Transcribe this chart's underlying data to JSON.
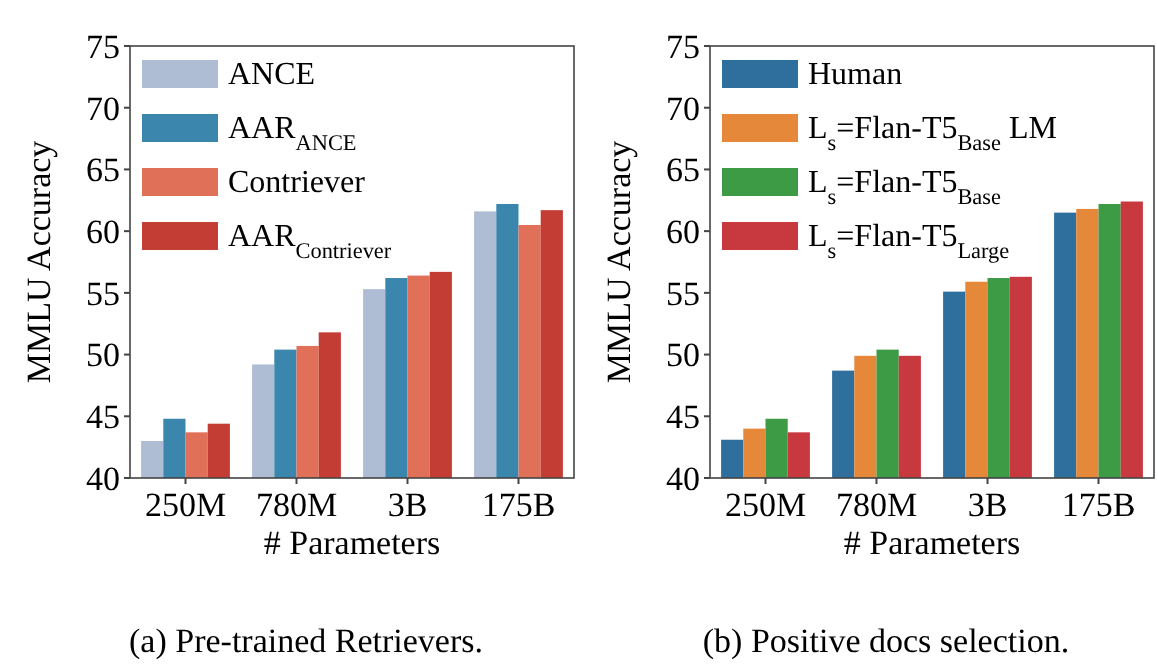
{
  "chart_data": [
    {
      "type": "bar",
      "xlabel": "# Parameters",
      "ylabel": "MMLU Accuracy",
      "categories": [
        "250M",
        "780M",
        "3B",
        "175B"
      ],
      "series": [
        {
          "name": "ANCE",
          "color": "#aebcd4",
          "values": [
            43.0,
            49.2,
            55.3,
            61.6
          ]
        },
        {
          "name": "AAR$_{ANCE}$",
          "color": "#3a86ad",
          "values": [
            44.8,
            50.4,
            56.2,
            62.2
          ]
        },
        {
          "name": "Contriever",
          "color": "#e07058",
          "values": [
            43.7,
            50.7,
            56.4,
            60.5
          ]
        },
        {
          "name": "AAR$_{Contriever}$",
          "color": "#c43d35",
          "values": [
            44.4,
            51.8,
            56.7,
            61.7
          ]
        }
      ],
      "ylim": [
        40,
        75
      ],
      "yticks": [
        40,
        45,
        50,
        55,
        60,
        65,
        70,
        75
      ],
      "legend": "top left",
      "annotations": [
        "(a) Pre-trained Retrievers."
      ]
    },
    {
      "type": "bar",
      "xlabel": "# Parameters",
      "ylabel": "MMLU Accuracy",
      "categories": [
        "250M",
        "780M",
        "3B",
        "175B"
      ],
      "series": [
        {
          "name": "Human",
          "color": "#2e6f9e",
          "values": [
            43.1,
            48.7,
            55.1,
            61.5
          ]
        },
        {
          "name": "L$_{s}$=Flan-T5$_{Base}$ LM",
          "color": "#e6883a",
          "values": [
            44.0,
            49.9,
            55.9,
            61.8
          ]
        },
        {
          "name": "L$_{s}$=Flan-T5$_{Base}$",
          "color": "#3d9a45",
          "values": [
            44.8,
            50.4,
            56.2,
            62.2
          ]
        },
        {
          "name": "L$_{s}$=Flan-T5$_{Large}$",
          "color": "#c8393f",
          "values": [
            43.7,
            49.9,
            56.3,
            62.4
          ]
        }
      ],
      "ylim": [
        40,
        75
      ],
      "yticks": [
        40,
        45,
        50,
        55,
        60,
        65,
        70,
        75
      ],
      "legend": "top left",
      "annotations": [
        "(b) Positive docs selection."
      ]
    }
  ]
}
